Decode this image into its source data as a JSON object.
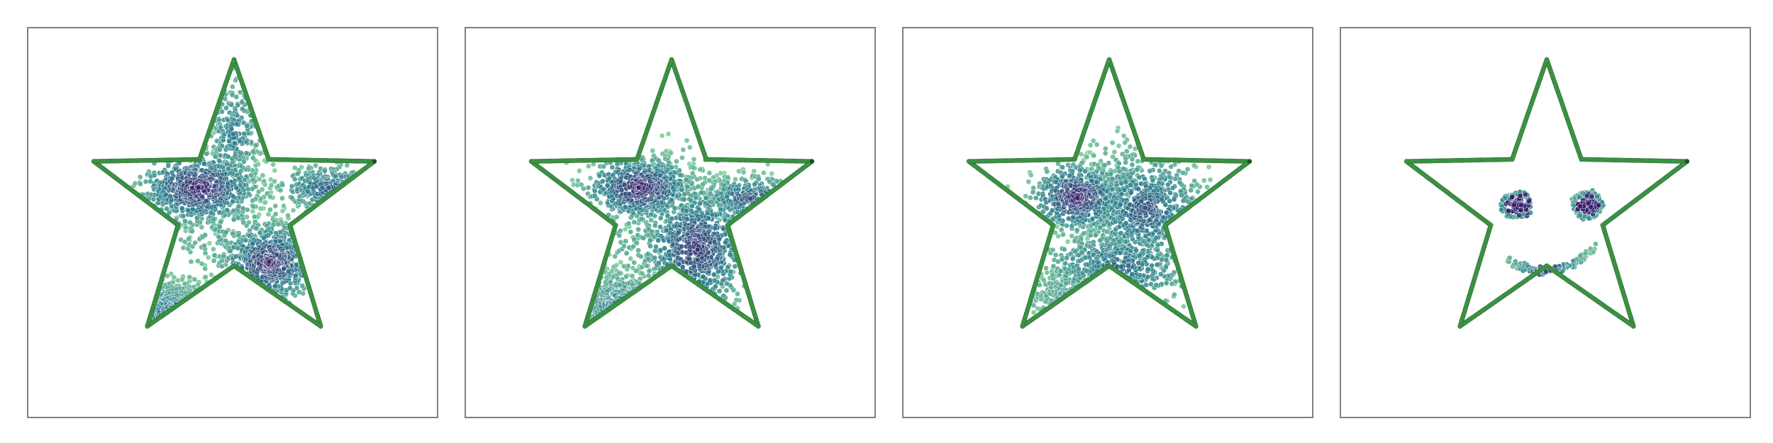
{
  "figure": {
    "description_panels": [
      {
        "id": "panel-1",
        "pattern": "star-filled-two-clusters"
      },
      {
        "id": "panel-2",
        "pattern": "star-filled-three-clusters"
      },
      {
        "id": "panel-3",
        "pattern": "star-filled-upper-left-and-center"
      },
      {
        "id": "panel-4",
        "pattern": "star-smiley-face"
      }
    ]
  },
  "colors": {
    "outline": "#3f9a47",
    "outline_stroke": "#2e6b33",
    "point_dark": "#3b1c6b",
    "point_mid": "#2b7f8e",
    "point_light": "#7fcf9a",
    "frame": "#808080"
  }
}
